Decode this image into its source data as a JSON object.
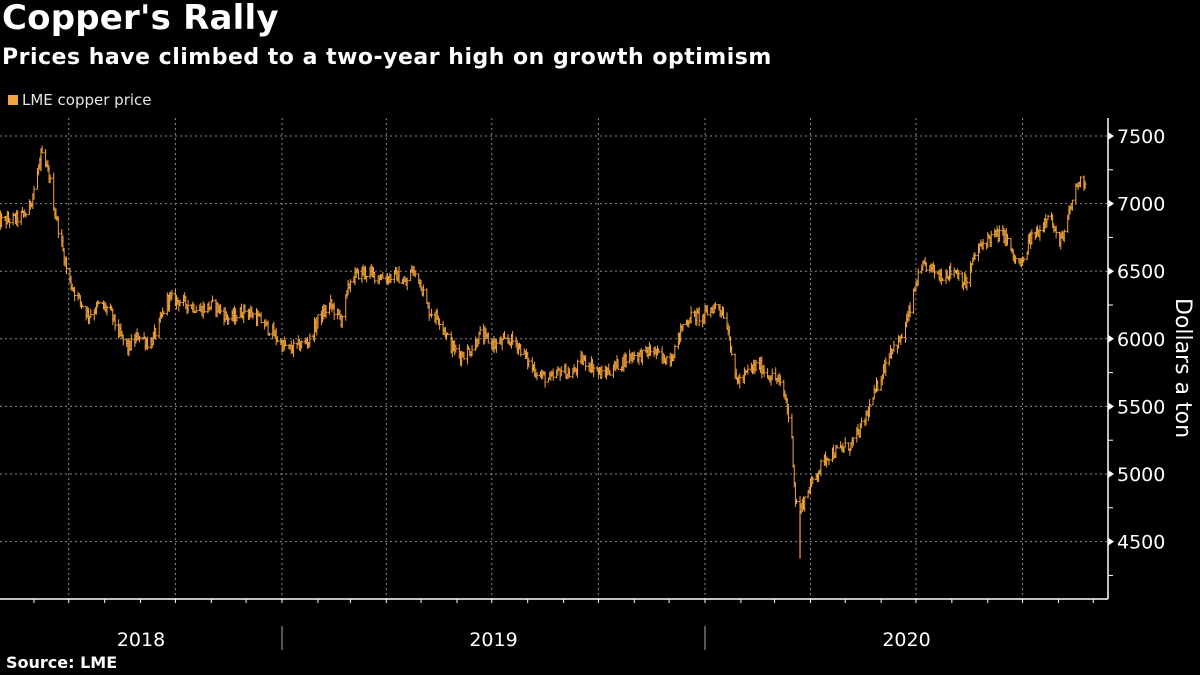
{
  "header": {
    "title": "Copper's Rally",
    "subtitle": "Prices have climbed to a two-year high on growth optimism"
  },
  "legend": {
    "label": "LME copper price",
    "color": "#f5a43c"
  },
  "footer": {
    "source": "Source: LME"
  },
  "chart_data": {
    "type": "ohlc",
    "title": "Copper's Rally",
    "subtitle": "Prices have climbed to a two-year high on growth optimism",
    "xlabel": "",
    "ylabel": "Dollars a ton",
    "series_name": "LME copper price",
    "series_color": "#f5a43c",
    "x_start": "2018-05-01",
    "x_end": "2020-12-31",
    "ylim": [
      4080,
      7650
    ],
    "yticks": [
      4500,
      5000,
      5500,
      6000,
      6500,
      7000,
      7500
    ],
    "ytick_labels": [
      "4500",
      "5000",
      "5500",
      "6000",
      "6500",
      "7000",
      "7500"
    ],
    "year_labels": [
      {
        "label": "2018",
        "year": 2018
      },
      {
        "label": "2019",
        "year": 2019
      },
      {
        "label": "2020",
        "year": 2020
      }
    ],
    "grid": true,
    "legend_position": "top-left",
    "points": [
      [
        "2018-05-01",
        6864
      ],
      [
        "2018-05-18",
        6890
      ],
      [
        "2018-05-27",
        6940
      ],
      [
        "2018-06-03",
        7175
      ],
      [
        "2018-06-07",
        7360
      ],
      [
        "2018-06-14",
        7210
      ],
      [
        "2018-06-18",
        6990
      ],
      [
        "2018-06-25",
        6695
      ],
      [
        "2018-07-01",
        6435
      ],
      [
        "2018-07-10",
        6290
      ],
      [
        "2018-07-18",
        6175
      ],
      [
        "2018-07-27",
        6250
      ],
      [
        "2018-08-05",
        6215
      ],
      [
        "2018-08-14",
        6030
      ],
      [
        "2018-08-21",
        5930
      ],
      [
        "2018-08-31",
        6030
      ],
      [
        "2018-09-09",
        5955
      ],
      [
        "2018-09-17",
        6100
      ],
      [
        "2018-09-24",
        6290
      ],
      [
        "2018-10-01",
        6290
      ],
      [
        "2018-10-14",
        6250
      ],
      [
        "2018-10-22",
        6215
      ],
      [
        "2018-11-04",
        6250
      ],
      [
        "2018-11-17",
        6140
      ],
      [
        "2018-11-30",
        6215
      ],
      [
        "2018-12-13",
        6140
      ],
      [
        "2018-12-22",
        6065
      ],
      [
        "2019-01-01",
        5955
      ],
      [
        "2019-01-08",
        5920
      ],
      [
        "2019-01-17",
        5955
      ],
      [
        "2019-01-25",
        5990
      ],
      [
        "2019-02-01",
        6140
      ],
      [
        "2019-02-12",
        6250
      ],
      [
        "2019-02-21",
        6140
      ],
      [
        "2019-03-01",
        6435
      ],
      [
        "2019-03-10",
        6495
      ],
      [
        "2019-03-23",
        6470
      ],
      [
        "2019-04-01",
        6450
      ],
      [
        "2019-04-10",
        6470
      ],
      [
        "2019-04-18",
        6400
      ],
      [
        "2019-04-23",
        6510
      ],
      [
        "2019-04-30",
        6435
      ],
      [
        "2019-05-07",
        6215
      ],
      [
        "2019-05-18",
        6140
      ],
      [
        "2019-05-26",
        5955
      ],
      [
        "2019-06-04",
        5880
      ],
      [
        "2019-06-13",
        5920
      ],
      [
        "2019-06-21",
        6030
      ],
      [
        "2019-07-04",
        5955
      ],
      [
        "2019-07-17",
        5990
      ],
      [
        "2019-07-24",
        5955
      ],
      [
        "2019-08-03",
        5805
      ],
      [
        "2019-08-12",
        5730
      ],
      [
        "2019-08-21",
        5695
      ],
      [
        "2019-08-30",
        5770
      ],
      [
        "2019-09-08",
        5730
      ],
      [
        "2019-09-17",
        5845
      ],
      [
        "2019-09-25",
        5805
      ],
      [
        "2019-10-04",
        5730
      ],
      [
        "2019-10-17",
        5805
      ],
      [
        "2019-10-30",
        5880
      ],
      [
        "2019-11-08",
        5880
      ],
      [
        "2019-11-17",
        5920
      ],
      [
        "2019-11-25",
        5845
      ],
      [
        "2019-12-04",
        5880
      ],
      [
        "2019-12-13",
        6100
      ],
      [
        "2019-12-21",
        6175
      ],
      [
        "2019-12-30",
        6155
      ],
      [
        "2020-01-05",
        6215
      ],
      [
        "2020-01-12",
        6250
      ],
      [
        "2020-01-18",
        6175
      ],
      [
        "2020-01-22",
        6030
      ],
      [
        "2020-01-27",
        5695
      ],
      [
        "2020-02-02",
        5695
      ],
      [
        "2020-02-08",
        5770
      ],
      [
        "2020-02-17",
        5805
      ],
      [
        "2020-02-25",
        5730
      ],
      [
        "2020-03-04",
        5695
      ],
      [
        "2020-03-11",
        5545
      ],
      [
        "2020-03-16",
        5250
      ],
      [
        "2020-03-19",
        4805
      ],
      [
        "2020-03-23",
        4730
      ],
      [
        "2020-03-30",
        4880
      ],
      [
        "2020-04-08",
        5030
      ],
      [
        "2020-04-16",
        5140
      ],
      [
        "2020-04-27",
        5180
      ],
      [
        "2020-05-06",
        5215
      ],
      [
        "2020-05-14",
        5325
      ],
      [
        "2020-05-23",
        5510
      ],
      [
        "2020-06-01",
        5730
      ],
      [
        "2020-06-09",
        5920
      ],
      [
        "2020-06-18",
        5990
      ],
      [
        "2020-06-26",
        6215
      ],
      [
        "2020-07-02",
        6435
      ],
      [
        "2020-07-09",
        6545
      ],
      [
        "2020-07-22",
        6470
      ],
      [
        "2020-08-04",
        6510
      ],
      [
        "2020-08-13",
        6400
      ],
      [
        "2020-08-21",
        6620
      ],
      [
        "2020-08-30",
        6730
      ],
      [
        "2020-09-07",
        6765
      ],
      [
        "2020-09-16",
        6765
      ],
      [
        "2020-09-24",
        6580
      ],
      [
        "2020-10-01",
        6545
      ],
      [
        "2020-10-07",
        6730
      ],
      [
        "2020-10-16",
        6805
      ],
      [
        "2020-10-24",
        6955
      ],
      [
        "2020-10-29",
        6765
      ],
      [
        "2020-11-05",
        6730
      ],
      [
        "2020-11-11",
        6955
      ],
      [
        "2020-11-17",
        7140
      ],
      [
        "2020-11-23",
        7180
      ]
    ],
    "extremes": {
      "high_2018": 7360,
      "low_2020": 4375,
      "last_high": 7205
    }
  }
}
